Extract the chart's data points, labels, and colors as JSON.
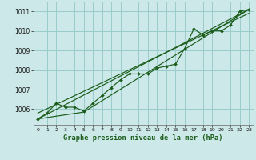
{
  "title": "Graphe pression niveau de la mer (hPa)",
  "bg_color": "#cce8e8",
  "grid_color": "#99cccc",
  "line_color": "#1a5c1a",
  "xlim": [
    -0.5,
    23.5
  ],
  "ylim": [
    1005.2,
    1011.5
  ],
  "yticks": [
    1006,
    1007,
    1008,
    1009,
    1010,
    1011
  ],
  "xticks": [
    0,
    1,
    2,
    3,
    4,
    5,
    6,
    7,
    8,
    9,
    10,
    11,
    12,
    13,
    14,
    15,
    16,
    17,
    18,
    19,
    20,
    21,
    22,
    23
  ],
  "main_x": [
    0,
    1,
    2,
    3,
    4,
    5,
    6,
    7,
    8,
    9,
    10,
    11,
    12,
    13,
    14,
    15,
    16,
    17,
    18,
    19,
    20,
    21,
    22,
    23
  ],
  "main_y": [
    1005.5,
    1005.8,
    1006.3,
    1006.1,
    1006.1,
    1005.9,
    1006.3,
    1006.7,
    1007.1,
    1007.5,
    1007.8,
    1007.8,
    1007.8,
    1008.1,
    1008.2,
    1008.3,
    1009.1,
    1010.1,
    1009.8,
    1010.0,
    1010.0,
    1010.3,
    1011.0,
    1011.1
  ],
  "trend1_x": [
    0,
    23
  ],
  "trend1_y": [
    1005.5,
    1011.1
  ],
  "trend2_x": [
    0,
    5,
    23
  ],
  "trend2_y": [
    1005.5,
    1005.85,
    1011.1
  ],
  "trend3_x": [
    0,
    23
  ],
  "trend3_y": [
    1005.8,
    1010.9
  ]
}
